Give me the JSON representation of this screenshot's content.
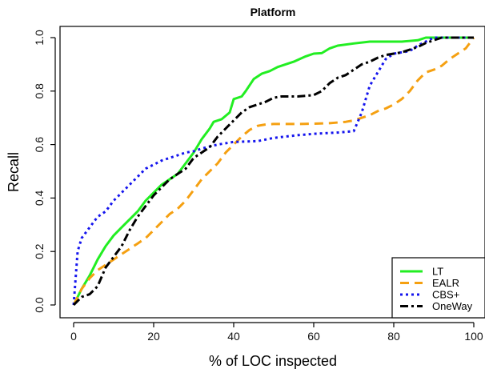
{
  "chart_data": {
    "type": "line",
    "title": "Platform",
    "xlabel": "% of LOC inspected",
    "ylabel": "Recall",
    "xlim": [
      0,
      100
    ],
    "ylim": [
      0,
      1
    ],
    "x_ticks": [
      0,
      20,
      40,
      60,
      80,
      100
    ],
    "y_ticks": [
      0.0,
      0.2,
      0.4,
      0.6,
      0.8,
      1.0
    ],
    "x_tick_labels": [
      "0",
      "20",
      "40",
      "60",
      "80",
      "100"
    ],
    "y_tick_labels": [
      "0.0",
      "0.2",
      "0.4",
      "0.6",
      "0.8",
      "1.0"
    ],
    "grid": false,
    "legend_position": "bottom-right",
    "series": [
      {
        "name": "LT",
        "color": "#22ee22",
        "dash": "solid",
        "points": [
          [
            0,
            0
          ],
          [
            2,
            0.06
          ],
          [
            4,
            0.11
          ],
          [
            6,
            0.17
          ],
          [
            8,
            0.22
          ],
          [
            10,
            0.26
          ],
          [
            12,
            0.29
          ],
          [
            14,
            0.32
          ],
          [
            16,
            0.35
          ],
          [
            18,
            0.39
          ],
          [
            20,
            0.42
          ],
          [
            22,
            0.45
          ],
          [
            24,
            0.47
          ],
          [
            26,
            0.49
          ],
          [
            28,
            0.53
          ],
          [
            30,
            0.57
          ],
          [
            32,
            0.62
          ],
          [
            34,
            0.66
          ],
          [
            35,
            0.685
          ],
          [
            37,
            0.695
          ],
          [
            39,
            0.72
          ],
          [
            40,
            0.77
          ],
          [
            42,
            0.78
          ],
          [
            43,
            0.8
          ],
          [
            45,
            0.845
          ],
          [
            47,
            0.865
          ],
          [
            49,
            0.875
          ],
          [
            51,
            0.89
          ],
          [
            55,
            0.91
          ],
          [
            58,
            0.93
          ],
          [
            60,
            0.94
          ],
          [
            62,
            0.942
          ],
          [
            64,
            0.96
          ],
          [
            66,
            0.97
          ],
          [
            70,
            0.978
          ],
          [
            74,
            0.985
          ],
          [
            78,
            0.985
          ],
          [
            82,
            0.985
          ],
          [
            86,
            0.99
          ],
          [
            88,
            1.0
          ],
          [
            100,
            1.0
          ]
        ]
      },
      {
        "name": "EALR",
        "color": "#f5a011",
        "dash": "dash",
        "points": [
          [
            0,
            0
          ],
          [
            2,
            0.06
          ],
          [
            4,
            0.1
          ],
          [
            6,
            0.13
          ],
          [
            8,
            0.15
          ],
          [
            10,
            0.17
          ],
          [
            12,
            0.19
          ],
          [
            14,
            0.21
          ],
          [
            16,
            0.23
          ],
          [
            18,
            0.25
          ],
          [
            20,
            0.28
          ],
          [
            22,
            0.31
          ],
          [
            24,
            0.34
          ],
          [
            26,
            0.36
          ],
          [
            28,
            0.39
          ],
          [
            30,
            0.43
          ],
          [
            32,
            0.47
          ],
          [
            34,
            0.5
          ],
          [
            36,
            0.53
          ],
          [
            38,
            0.57
          ],
          [
            40,
            0.6
          ],
          [
            42,
            0.63
          ],
          [
            44,
            0.655
          ],
          [
            46,
            0.67
          ],
          [
            48,
            0.675
          ],
          [
            50,
            0.677
          ],
          [
            56,
            0.677
          ],
          [
            60,
            0.678
          ],
          [
            64,
            0.68
          ],
          [
            68,
            0.685
          ],
          [
            70,
            0.69
          ],
          [
            72,
            0.7
          ],
          [
            74,
            0.71
          ],
          [
            76,
            0.725
          ],
          [
            78,
            0.735
          ],
          [
            80,
            0.75
          ],
          [
            82,
            0.77
          ],
          [
            84,
            0.8
          ],
          [
            86,
            0.84
          ],
          [
            88,
            0.87
          ],
          [
            90,
            0.88
          ],
          [
            92,
            0.895
          ],
          [
            94,
            0.92
          ],
          [
            96,
            0.94
          ],
          [
            98,
            0.96
          ],
          [
            100,
            1.0
          ]
        ]
      },
      {
        "name": "CBS+",
        "color": "#1515ee",
        "dash": "dot",
        "points": [
          [
            0,
            0
          ],
          [
            1,
            0.2
          ],
          [
            2,
            0.25
          ],
          [
            4,
            0.29
          ],
          [
            6,
            0.33
          ],
          [
            8,
            0.35
          ],
          [
            10,
            0.39
          ],
          [
            12,
            0.42
          ],
          [
            14,
            0.45
          ],
          [
            16,
            0.48
          ],
          [
            18,
            0.51
          ],
          [
            20,
            0.525
          ],
          [
            22,
            0.54
          ],
          [
            24,
            0.55
          ],
          [
            26,
            0.56
          ],
          [
            28,
            0.57
          ],
          [
            30,
            0.575
          ],
          [
            32,
            0.585
          ],
          [
            36,
            0.6
          ],
          [
            40,
            0.61
          ],
          [
            46,
            0.613
          ],
          [
            50,
            0.625
          ],
          [
            56,
            0.635
          ],
          [
            60,
            0.64
          ],
          [
            66,
            0.645
          ],
          [
            70,
            0.65
          ],
          [
            72,
            0.72
          ],
          [
            74,
            0.82
          ],
          [
            76,
            0.87
          ],
          [
            78,
            0.92
          ],
          [
            80,
            0.94
          ],
          [
            82,
            0.945
          ],
          [
            84,
            0.95
          ],
          [
            86,
            0.97
          ],
          [
            88,
            0.985
          ],
          [
            90,
            1.0
          ],
          [
            100,
            1.0
          ]
        ]
      },
      {
        "name": "OneWay",
        "color": "#000000",
        "dash": "dashdot",
        "points": [
          [
            0,
            0
          ],
          [
            2,
            0.03
          ],
          [
            4,
            0.04
          ],
          [
            6,
            0.07
          ],
          [
            8,
            0.14
          ],
          [
            10,
            0.18
          ],
          [
            12,
            0.22
          ],
          [
            14,
            0.28
          ],
          [
            16,
            0.33
          ],
          [
            18,
            0.37
          ],
          [
            20,
            0.41
          ],
          [
            22,
            0.44
          ],
          [
            24,
            0.47
          ],
          [
            26,
            0.49
          ],
          [
            28,
            0.51
          ],
          [
            30,
            0.55
          ],
          [
            32,
            0.57
          ],
          [
            34,
            0.59
          ],
          [
            36,
            0.63
          ],
          [
            38,
            0.66
          ],
          [
            40,
            0.69
          ],
          [
            42,
            0.72
          ],
          [
            44,
            0.74
          ],
          [
            46,
            0.75
          ],
          [
            48,
            0.76
          ],
          [
            50,
            0.775
          ],
          [
            52,
            0.78
          ],
          [
            56,
            0.78
          ],
          [
            60,
            0.785
          ],
          [
            62,
            0.8
          ],
          [
            64,
            0.83
          ],
          [
            66,
            0.85
          ],
          [
            68,
            0.86
          ],
          [
            70,
            0.88
          ],
          [
            72,
            0.9
          ],
          [
            74,
            0.91
          ],
          [
            76,
            0.925
          ],
          [
            78,
            0.935
          ],
          [
            80,
            0.94
          ],
          [
            82,
            0.945
          ],
          [
            84,
            0.955
          ],
          [
            86,
            0.965
          ],
          [
            88,
            0.98
          ],
          [
            90,
            0.99
          ],
          [
            92,
            1.0
          ],
          [
            100,
            1.0
          ]
        ]
      }
    ]
  }
}
